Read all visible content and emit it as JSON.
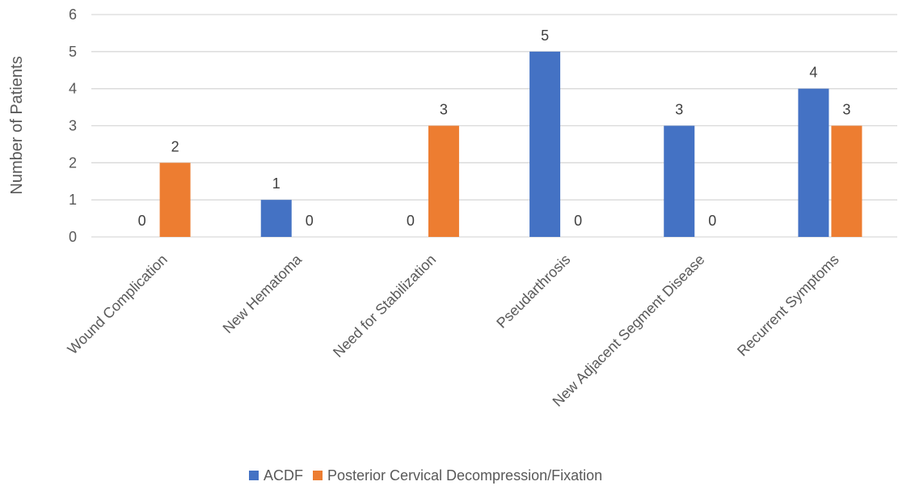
{
  "chart_data": {
    "type": "bar",
    "title": "",
    "xlabel": "",
    "ylabel": "Number of Patients",
    "ylim": [
      0,
      6
    ],
    "yticks": [
      0,
      1,
      2,
      3,
      4,
      5,
      6
    ],
    "grid": true,
    "legend_position": "bottom",
    "categories": [
      "Wound Complication",
      "New Hematoma",
      "Need for Stabilization",
      "Pseudarthrosis",
      "New Adjacent Segment Disease",
      "Recurrent Symptoms"
    ],
    "series": [
      {
        "name": "ACDF",
        "color": "#4472C4",
        "values": [
          0,
          1,
          0,
          5,
          3,
          4
        ]
      },
      {
        "name": "Posterior Cervical Decompression/Fixation",
        "color": "#ED7D31",
        "values": [
          2,
          0,
          3,
          0,
          0,
          3
        ]
      }
    ]
  }
}
